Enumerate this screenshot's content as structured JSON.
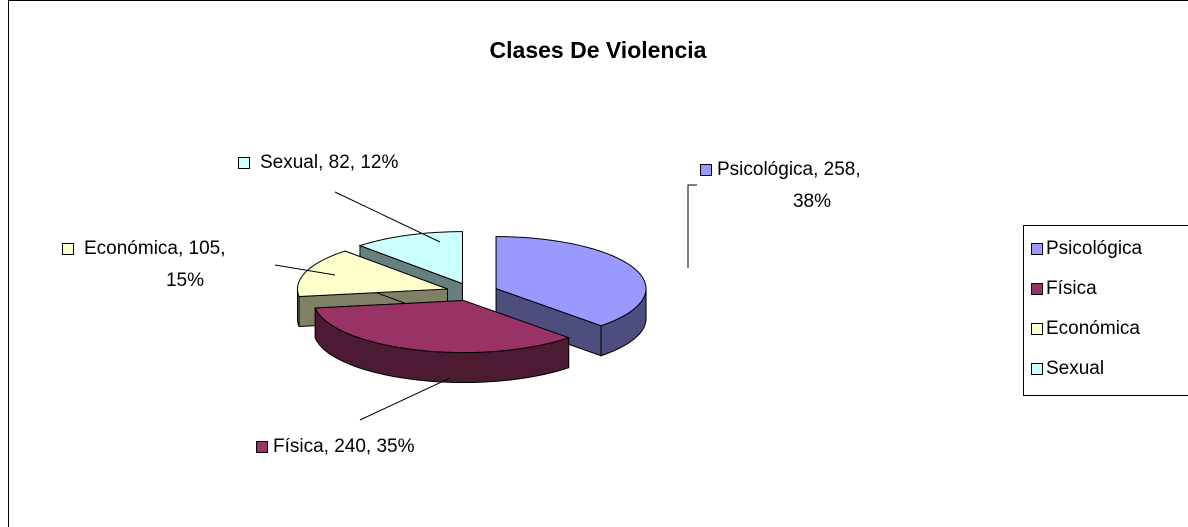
{
  "chart_data": {
    "type": "pie3d",
    "title": "Clases De Violencia",
    "categories": [
      "Psicológica",
      "Física",
      "Económica",
      "Sexual"
    ],
    "values": [
      258,
      240,
      105,
      82
    ],
    "value_labels": [
      "Psicológica, 258, 38%",
      "Física, 240, 35%",
      "Económica, 105, 15%",
      "Sexual, 82, 12%"
    ],
    "colors": [
      "#9999ff",
      "#993366",
      "#ffffcc",
      "#ccffff"
    ],
    "legend": "right"
  }
}
